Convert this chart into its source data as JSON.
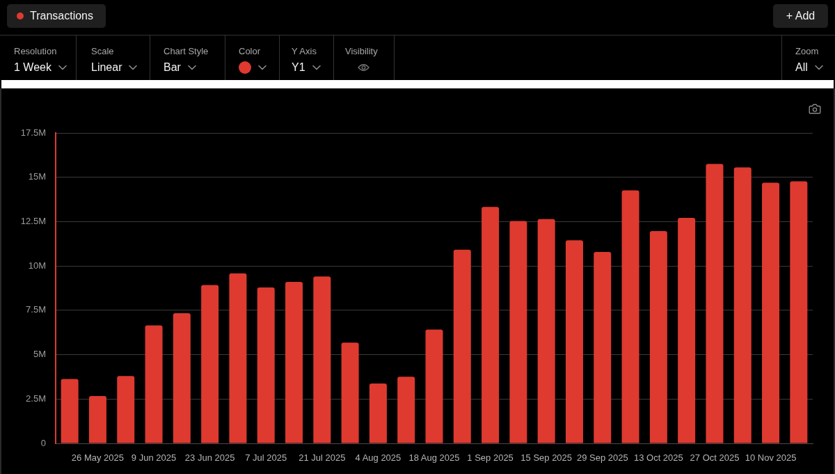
{
  "chart_data": {
    "type": "bar",
    "title": "Transactions",
    "categories": [
      null,
      "26 May 2025",
      null,
      "9 Jun 2025",
      null,
      "23 Jun 2025",
      null,
      "7 Jul 2025",
      null,
      "21 Jul 2025",
      null,
      "4 Aug 2025",
      null,
      "18 Aug 2025",
      null,
      "1 Sep 2025",
      null,
      "15 Sep 2025",
      null,
      "29 Sep 2025",
      null,
      "13 Oct 2025",
      null,
      "27 Oct 2025",
      null,
      "10 Nov 2025",
      null
    ],
    "values": [
      3630000,
      2670000,
      3800000,
      6650000,
      7340000,
      8930000,
      9580000,
      8790000,
      9100000,
      9410000,
      5680000,
      3370000,
      3760000,
      6420000,
      10920000,
      13330000,
      12540000,
      12640000,
      11450000,
      10790000,
      14260000,
      11970000,
      12710000,
      15750000,
      15560000,
      14690000,
      14770000
    ],
    "color": "#de3a30",
    "ylim": [
      0,
      17500000
    ],
    "yticks": [
      0,
      {
        "value": 2500000,
        "label": "2.5M"
      },
      {
        "value": 5000000,
        "label": "5M"
      },
      {
        "value": 7500000,
        "label": "7.5M"
      },
      {
        "value": 10000000,
        "label": "10M"
      },
      {
        "value": 12500000,
        "label": "12.5M"
      },
      {
        "value": 15000000,
        "label": "15M"
      },
      {
        "value": 17500000,
        "label": "17.5M"
      }
    ],
    "grid": "y",
    "annotations": [
      "Resolution",
      "1 Week",
      "Scale",
      "Linear",
      "Chart Style",
      "Bar",
      "Color",
      "Y Axis",
      "Y1",
      "Visibility",
      "Zoom",
      "All",
      "+ Add"
    ]
  }
}
